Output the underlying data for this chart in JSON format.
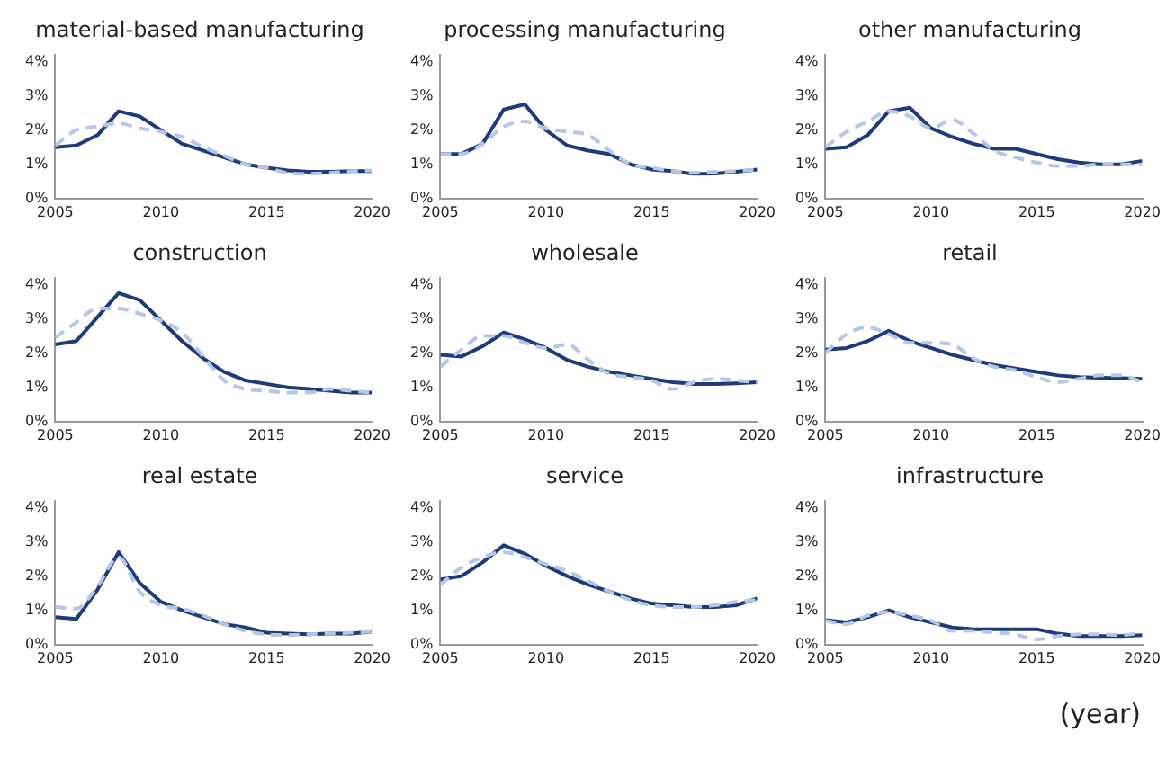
{
  "chart_data": [
    {
      "type": "line",
      "title": "material-based manufacturing",
      "x": [
        2005,
        2006,
        2007,
        2008,
        2009,
        2010,
        2011,
        2012,
        2013,
        2014,
        2015,
        2016,
        2017,
        2018,
        2019,
        2020
      ],
      "xlim": [
        2005,
        2020
      ],
      "xticks": [
        2005,
        2010,
        2015,
        2020
      ],
      "ylim": [
        0,
        4.2
      ],
      "yticks": [
        {
          "value": 0,
          "label": "0%"
        },
        {
          "value": 1,
          "label": "1%"
        },
        {
          "value": 2,
          "label": "2%"
        },
        {
          "value": 3,
          "label": "3%"
        },
        {
          "value": 4,
          "label": "4%"
        }
      ],
      "grid": false,
      "legend": false,
      "series": [
        {
          "color": "#1f3a7a",
          "line_style": "solid",
          "values": [
            1.5,
            1.55,
            1.85,
            2.55,
            2.4,
            2.0,
            1.6,
            1.4,
            1.2,
            1.0,
            0.9,
            0.82,
            0.78,
            0.78,
            0.8,
            0.8
          ]
        },
        {
          "color": "#b4c7e7",
          "line_style": "dashed",
          "values": [
            1.55,
            2.0,
            2.1,
            2.2,
            2.05,
            1.95,
            1.8,
            1.5,
            1.25,
            1.0,
            0.9,
            0.75,
            0.72,
            0.75,
            0.8,
            0.82
          ]
        }
      ]
    },
    {
      "type": "line",
      "title": "processing manufacturing",
      "x": [
        2005,
        2006,
        2007,
        2008,
        2009,
        2010,
        2011,
        2012,
        2013,
        2014,
        2015,
        2016,
        2017,
        2018,
        2019,
        2020
      ],
      "xlim": [
        2005,
        2020
      ],
      "xticks": [
        2005,
        2010,
        2015,
        2020
      ],
      "ylim": [
        0,
        4.2
      ],
      "yticks": [
        {
          "value": 0,
          "label": "0%"
        },
        {
          "value": 1,
          "label": "1%"
        },
        {
          "value": 2,
          "label": "2%"
        },
        {
          "value": 3,
          "label": "3%"
        },
        {
          "value": 4,
          "label": "4%"
        }
      ],
      "grid": false,
      "legend": false,
      "series": [
        {
          "color": "#1f3a7a",
          "line_style": "solid",
          "values": [
            1.3,
            1.3,
            1.6,
            2.6,
            2.75,
            2.0,
            1.55,
            1.4,
            1.3,
            1.0,
            0.85,
            0.8,
            0.72,
            0.73,
            0.78,
            0.85
          ]
        },
        {
          "color": "#b4c7e7",
          "line_style": "dashed",
          "values": [
            1.3,
            1.3,
            1.6,
            2.1,
            2.25,
            2.05,
            1.95,
            1.85,
            1.4,
            1.0,
            0.9,
            0.8,
            0.75,
            0.78,
            0.8,
            0.85
          ]
        }
      ]
    },
    {
      "type": "line",
      "title": "other manufacturing",
      "x": [
        2005,
        2006,
        2007,
        2008,
        2009,
        2010,
        2011,
        2012,
        2013,
        2014,
        2015,
        2016,
        2017,
        2018,
        2019,
        2020
      ],
      "xlim": [
        2005,
        2020
      ],
      "xticks": [
        2005,
        2010,
        2015,
        2020
      ],
      "ylim": [
        0,
        4.2
      ],
      "yticks": [
        {
          "value": 0,
          "label": "0%"
        },
        {
          "value": 1,
          "label": "1%"
        },
        {
          "value": 2,
          "label": "2%"
        },
        {
          "value": 3,
          "label": "3%"
        },
        {
          "value": 4,
          "label": "4%"
        }
      ],
      "grid": false,
      "legend": false,
      "series": [
        {
          "color": "#1f3a7a",
          "line_style": "solid",
          "values": [
            1.45,
            1.5,
            1.85,
            2.55,
            2.65,
            2.05,
            1.8,
            1.6,
            1.45,
            1.45,
            1.3,
            1.15,
            1.05,
            1.0,
            1.0,
            1.1
          ]
        },
        {
          "color": "#b4c7e7",
          "line_style": "dashed",
          "values": [
            1.5,
            1.95,
            2.25,
            2.55,
            2.4,
            2.05,
            2.3,
            1.9,
            1.4,
            1.2,
            1.05,
            0.95,
            0.95,
            1.0,
            1.0,
            1.0
          ]
        }
      ]
    },
    {
      "type": "line",
      "title": "construction",
      "x": [
        2005,
        2006,
        2007,
        2008,
        2009,
        2010,
        2011,
        2012,
        2013,
        2014,
        2015,
        2016,
        2017,
        2018,
        2019,
        2020
      ],
      "xlim": [
        2005,
        2020
      ],
      "xticks": [
        2005,
        2010,
        2015,
        2020
      ],
      "ylim": [
        0,
        4.2
      ],
      "yticks": [
        {
          "value": 0,
          "label": "0%"
        },
        {
          "value": 1,
          "label": "1%"
        },
        {
          "value": 2,
          "label": "2%"
        },
        {
          "value": 3,
          "label": "3%"
        },
        {
          "value": 4,
          "label": "4%"
        }
      ],
      "grid": false,
      "legend": false,
      "series": [
        {
          "color": "#1f3a7a",
          "line_style": "solid",
          "values": [
            2.25,
            2.35,
            3.05,
            3.75,
            3.55,
            2.95,
            2.35,
            1.85,
            1.45,
            1.2,
            1.1,
            1.0,
            0.95,
            0.9,
            0.85,
            0.85
          ]
        },
        {
          "color": "#b4c7e7",
          "line_style": "dashed",
          "values": [
            2.45,
            2.9,
            3.3,
            3.3,
            3.15,
            2.95,
            2.6,
            1.9,
            1.2,
            0.95,
            0.9,
            0.85,
            0.85,
            0.95,
            0.9,
            0.85
          ]
        }
      ]
    },
    {
      "type": "line",
      "title": "wholesale",
      "x": [
        2005,
        2006,
        2007,
        2008,
        2009,
        2010,
        2011,
        2012,
        2013,
        2014,
        2015,
        2016,
        2017,
        2018,
        2019,
        2020
      ],
      "xlim": [
        2005,
        2020
      ],
      "xticks": [
        2005,
        2010,
        2015,
        2020
      ],
      "ylim": [
        0,
        4.2
      ],
      "yticks": [
        {
          "value": 0,
          "label": "0%"
        },
        {
          "value": 1,
          "label": "1%"
        },
        {
          "value": 2,
          "label": "2%"
        },
        {
          "value": 3,
          "label": "3%"
        },
        {
          "value": 4,
          "label": "4%"
        }
      ],
      "grid": false,
      "legend": false,
      "series": [
        {
          "color": "#1f3a7a",
          "line_style": "solid",
          "values": [
            1.95,
            1.9,
            2.2,
            2.6,
            2.4,
            2.15,
            1.8,
            1.6,
            1.45,
            1.35,
            1.25,
            1.15,
            1.1,
            1.1,
            1.12,
            1.15
          ]
        },
        {
          "color": "#b4c7e7",
          "line_style": "dashed",
          "values": [
            1.6,
            2.1,
            2.5,
            2.5,
            2.3,
            2.15,
            2.25,
            1.8,
            1.4,
            1.3,
            1.2,
            0.95,
            1.15,
            1.25,
            1.2,
            1.15
          ]
        }
      ]
    },
    {
      "type": "line",
      "title": "retail",
      "x": [
        2005,
        2006,
        2007,
        2008,
        2009,
        2010,
        2011,
        2012,
        2013,
        2014,
        2015,
        2016,
        2017,
        2018,
        2019,
        2020
      ],
      "xlim": [
        2005,
        2020
      ],
      "xticks": [
        2005,
        2010,
        2015,
        2020
      ],
      "ylim": [
        0,
        4.2
      ],
      "yticks": [
        {
          "value": 0,
          "label": "0%"
        },
        {
          "value": 1,
          "label": "1%"
        },
        {
          "value": 2,
          "label": "2%"
        },
        {
          "value": 3,
          "label": "3%"
        },
        {
          "value": 4,
          "label": "4%"
        }
      ],
      "grid": false,
      "legend": false,
      "series": [
        {
          "color": "#1f3a7a",
          "line_style": "solid",
          "values": [
            2.1,
            2.15,
            2.35,
            2.65,
            2.35,
            2.15,
            1.95,
            1.8,
            1.65,
            1.55,
            1.45,
            1.35,
            1.3,
            1.28,
            1.27,
            1.25
          ]
        },
        {
          "color": "#b4c7e7",
          "line_style": "dashed",
          "values": [
            2.0,
            2.55,
            2.75,
            2.55,
            2.3,
            2.3,
            2.25,
            1.85,
            1.6,
            1.5,
            1.3,
            1.15,
            1.25,
            1.35,
            1.35,
            1.15
          ]
        }
      ]
    },
    {
      "type": "line",
      "title": "real estate",
      "x": [
        2005,
        2006,
        2007,
        2008,
        2009,
        2010,
        2011,
        2012,
        2013,
        2014,
        2015,
        2016,
        2017,
        2018,
        2019,
        2020
      ],
      "xlim": [
        2005,
        2020
      ],
      "xticks": [
        2005,
        2010,
        2015,
        2020
      ],
      "ylim": [
        0,
        4.2
      ],
      "yticks": [
        {
          "value": 0,
          "label": "0%"
        },
        {
          "value": 1,
          "label": "1%"
        },
        {
          "value": 2,
          "label": "2%"
        },
        {
          "value": 3,
          "label": "3%"
        },
        {
          "value": 4,
          "label": "4%"
        }
      ],
      "grid": false,
      "legend": false,
      "series": [
        {
          "color": "#1f3a7a",
          "line_style": "solid",
          "values": [
            0.8,
            0.75,
            1.6,
            2.7,
            1.8,
            1.25,
            1.0,
            0.8,
            0.6,
            0.5,
            0.35,
            0.32,
            0.3,
            0.32,
            0.32,
            0.38
          ]
        },
        {
          "color": "#b4c7e7",
          "line_style": "dashed",
          "values": [
            1.1,
            1.05,
            1.7,
            2.55,
            1.55,
            1.15,
            1.05,
            0.85,
            0.6,
            0.4,
            0.3,
            0.28,
            0.3,
            0.32,
            0.35,
            0.38
          ]
        }
      ]
    },
    {
      "type": "line",
      "title": "service",
      "x": [
        2005,
        2006,
        2007,
        2008,
        2009,
        2010,
        2011,
        2012,
        2013,
        2014,
        2015,
        2016,
        2017,
        2018,
        2019,
        2020
      ],
      "xlim": [
        2005,
        2020
      ],
      "xticks": [
        2005,
        2010,
        2015,
        2020
      ],
      "ylim": [
        0,
        4.2
      ],
      "yticks": [
        {
          "value": 0,
          "label": "0%"
        },
        {
          "value": 1,
          "label": "1%"
        },
        {
          "value": 2,
          "label": "2%"
        },
        {
          "value": 3,
          "label": "3%"
        },
        {
          "value": 4,
          "label": "4%"
        }
      ],
      "grid": false,
      "legend": false,
      "series": [
        {
          "color": "#1f3a7a",
          "line_style": "solid",
          "values": [
            1.9,
            2.0,
            2.4,
            2.9,
            2.65,
            2.3,
            2.0,
            1.75,
            1.55,
            1.35,
            1.2,
            1.15,
            1.1,
            1.1,
            1.15,
            1.35
          ]
        },
        {
          "color": "#b4c7e7",
          "line_style": "dashed",
          "values": [
            1.75,
            2.25,
            2.55,
            2.7,
            2.55,
            2.35,
            2.15,
            1.85,
            1.55,
            1.3,
            1.15,
            1.1,
            1.1,
            1.15,
            1.25,
            1.3
          ]
        }
      ]
    },
    {
      "type": "line",
      "title": "infrastructure",
      "xlabel": "(year)",
      "x": [
        2005,
        2006,
        2007,
        2008,
        2009,
        2010,
        2011,
        2012,
        2013,
        2014,
        2015,
        2016,
        2017,
        2018,
        2019,
        2020
      ],
      "xlim": [
        2005,
        2020
      ],
      "xticks": [
        2005,
        2010,
        2015,
        2020
      ],
      "ylim": [
        0,
        4.2
      ],
      "yticks": [
        {
          "value": 0,
          "label": "0%"
        },
        {
          "value": 1,
          "label": "1%"
        },
        {
          "value": 2,
          "label": "2%"
        },
        {
          "value": 3,
          "label": "3%"
        },
        {
          "value": 4,
          "label": "4%"
        }
      ],
      "grid": false,
      "legend": false,
      "series": [
        {
          "color": "#1f3a7a",
          "line_style": "solid",
          "values": [
            0.72,
            0.65,
            0.8,
            1.0,
            0.8,
            0.65,
            0.5,
            0.45,
            0.45,
            0.45,
            0.45,
            0.32,
            0.25,
            0.25,
            0.25,
            0.28
          ]
        },
        {
          "color": "#b4c7e7",
          "line_style": "dashed",
          "values": [
            0.7,
            0.6,
            0.85,
            0.95,
            0.85,
            0.7,
            0.4,
            0.4,
            0.35,
            0.3,
            0.15,
            0.25,
            0.3,
            0.3,
            0.28,
            0.35
          ]
        }
      ]
    }
  ]
}
